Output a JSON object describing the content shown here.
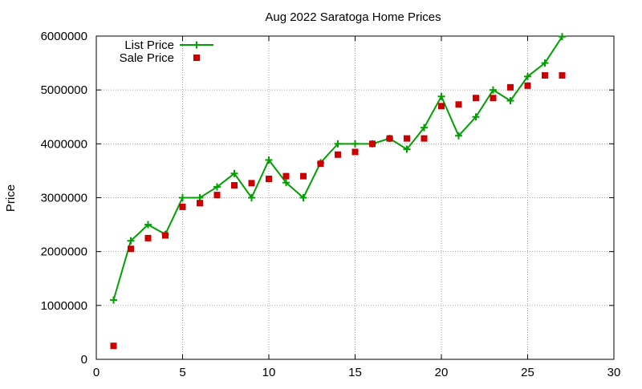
{
  "chart_data": {
    "type": "line",
    "title": "Aug 2022 Saratoga Home Prices",
    "xlabel": "",
    "ylabel": "Price",
    "xlim": [
      0,
      30
    ],
    "ylim": [
      0,
      6000000
    ],
    "x_ticks": [
      0,
      5,
      10,
      15,
      20,
      25,
      30
    ],
    "y_ticks": [
      0,
      1000000,
      2000000,
      3000000,
      4000000,
      5000000,
      6000000
    ],
    "x_tick_labels": [
      "0",
      "5",
      "10",
      "15",
      "20",
      "25",
      "30"
    ],
    "y_tick_labels": [
      "0",
      "1000000",
      "2000000",
      "3000000",
      "4000000",
      "5000000",
      "6000000"
    ],
    "grid": true,
    "legend_position": "top-left",
    "series": [
      {
        "name": "List Price",
        "style": "linespoints",
        "color": "#00a000",
        "x": [
          1,
          2,
          3,
          4,
          5,
          6,
          7,
          8,
          9,
          10,
          11,
          12,
          13,
          14,
          15,
          16,
          17,
          18,
          19,
          20,
          21,
          22,
          23,
          24,
          25,
          26,
          27
        ],
        "values": [
          1100000,
          2200000,
          2500000,
          2320000,
          3000000,
          3000000,
          3200000,
          3450000,
          3000000,
          3700000,
          3280000,
          3000000,
          3650000,
          4000000,
          4000000,
          4000000,
          4100000,
          3900000,
          4300000,
          4880000,
          4150000,
          4500000,
          5000000,
          4800000,
          5250000,
          5500000,
          5990000
        ]
      },
      {
        "name": "Sale Price",
        "style": "points",
        "color": "#cc0000",
        "x": [
          1,
          2,
          3,
          4,
          5,
          6,
          7,
          8,
          9,
          10,
          11,
          12,
          13,
          14,
          15,
          16,
          17,
          18,
          19,
          20,
          21,
          22,
          23,
          24,
          25,
          26,
          27
        ],
        "values": [
          250000,
          2050000,
          2250000,
          2300000,
          2830000,
          2900000,
          3050000,
          3230000,
          3270000,
          3350000,
          3400000,
          3400000,
          3630000,
          3800000,
          3850000,
          4000000,
          4100000,
          4100000,
          4100000,
          4700000,
          4730000,
          4850000,
          4850000,
          5050000,
          5080000,
          5270000,
          5270000
        ]
      }
    ]
  }
}
